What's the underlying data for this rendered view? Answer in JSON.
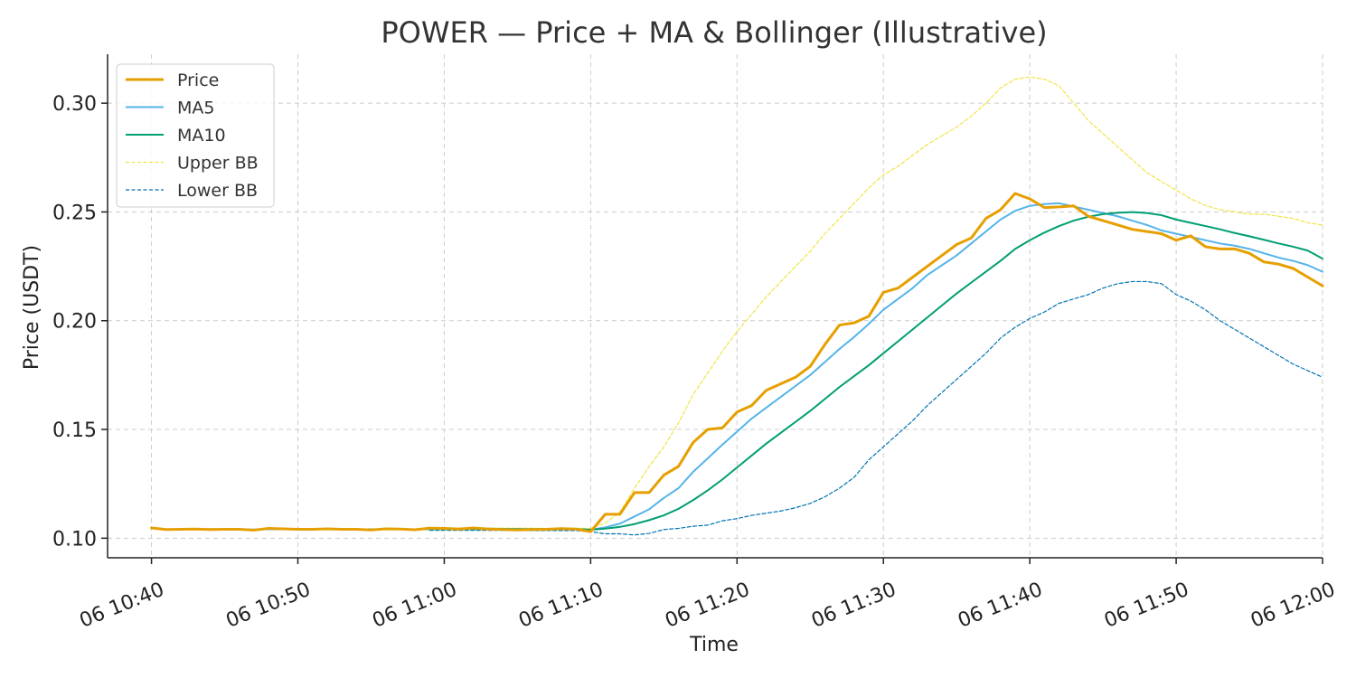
{
  "chart_data": {
    "type": "line",
    "title": "POWER — Price + MA & Bollinger (Illustrative)",
    "xlabel": "Time",
    "ylabel": "Price (USDT)",
    "x_type": "time",
    "x_start": "06 10:40",
    "x_end": "06 11:59",
    "x_step_minutes": 1,
    "xlim": [
      "06 10:37",
      "06 12:00"
    ],
    "ylim": [
      0.091,
      0.3225
    ],
    "x_ticks": [
      "06 10:40",
      "06 10:50",
      "06 11:00",
      "06 11:10",
      "06 11:20",
      "06 11:30",
      "06 11:40",
      "06 11:50",
      "06 12:00"
    ],
    "x_tick_minutes": [
      0,
      10,
      20,
      30,
      40,
      50,
      60,
      70,
      80
    ],
    "y_ticks": [
      0.1,
      0.15,
      0.2,
      0.25,
      0.3
    ],
    "y_tick_labels": [
      "0.10",
      "0.15",
      "0.20",
      "0.25",
      "0.30"
    ],
    "grid": true,
    "legend_position": "top-left",
    "series": [
      {
        "name": "Price",
        "color": "#e69f00",
        "style": "solid",
        "width": 3,
        "values": [
          0.1047,
          0.104,
          0.1041,
          0.1042,
          0.104,
          0.1041,
          0.1041,
          0.1037,
          0.1045,
          0.1043,
          0.1041,
          0.1041,
          0.1043,
          0.1041,
          0.1041,
          0.1038,
          0.1043,
          0.1042,
          0.1039,
          0.1046,
          0.1045,
          0.1042,
          0.1047,
          0.1042,
          0.104,
          0.1038,
          0.104,
          0.1041,
          0.1044,
          0.1042,
          0.103,
          0.111,
          0.111,
          0.121,
          0.121,
          0.129,
          0.133,
          0.144,
          0.15,
          0.1507,
          0.158,
          0.161,
          0.168,
          0.171,
          0.174,
          0.179,
          0.189,
          0.198,
          0.199,
          0.202,
          0.213,
          0.215,
          0.22,
          0.225,
          0.23,
          0.235,
          0.238,
          0.247,
          0.251,
          0.2585,
          0.256,
          0.252,
          0.2523,
          0.2528,
          0.248,
          0.246,
          0.244,
          0.242,
          0.241,
          0.24,
          0.237,
          0.239,
          0.234,
          0.233,
          0.233,
          0.231,
          0.227,
          0.226,
          0.224,
          0.22,
          0.216
        ]
      },
      {
        "name": "MA5",
        "color": "#56b4e9",
        "style": "solid",
        "width": 2,
        "values": [
          null,
          null,
          null,
          null,
          0.1042,
          0.1041,
          0.1041,
          0.104,
          0.1041,
          0.1041,
          0.1041,
          0.1041,
          0.1041,
          0.1041,
          0.1041,
          0.1041,
          0.1041,
          0.1041,
          0.1041,
          0.1042,
          0.1043,
          0.1043,
          0.1044,
          0.1044,
          0.1043,
          0.1042,
          0.1041,
          0.104,
          0.1041,
          0.1041,
          0.1039,
          0.105,
          0.1067,
          0.11,
          0.1133,
          0.1185,
          0.123,
          0.1305,
          0.1367,
          0.143,
          0.149,
          0.155,
          0.16,
          0.165,
          0.17,
          0.175,
          0.181,
          0.187,
          0.1925,
          0.1985,
          0.205,
          0.21,
          0.215,
          0.221,
          0.2255,
          0.23,
          0.2355,
          0.241,
          0.2465,
          0.2505,
          0.2528,
          0.2536,
          0.254,
          0.2525,
          0.251,
          0.2495,
          0.248,
          0.246,
          0.244,
          0.2415,
          0.24,
          0.2385,
          0.237,
          0.2355,
          0.2345,
          0.233,
          0.231,
          0.229,
          0.2275,
          0.2255,
          0.2225
        ]
      },
      {
        "name": "MA10",
        "color": "#009e73",
        "style": "solid",
        "width": 2,
        "values": [
          null,
          null,
          null,
          null,
          null,
          null,
          null,
          null,
          null,
          0.1042,
          0.1041,
          0.1041,
          0.1041,
          0.1041,
          0.1041,
          0.1041,
          0.1041,
          0.1041,
          0.1041,
          0.1042,
          0.1042,
          0.1042,
          0.1042,
          0.1042,
          0.1042,
          0.1042,
          0.1042,
          0.1042,
          0.1042,
          0.1042,
          0.1039,
          0.1044,
          0.1052,
          0.1065,
          0.1083,
          0.1105,
          0.1135,
          0.1175,
          0.122,
          0.127,
          0.1325,
          0.138,
          0.1435,
          0.1485,
          0.1535,
          0.1585,
          0.164,
          0.1695,
          0.1745,
          0.1795,
          0.185,
          0.1905,
          0.196,
          0.2015,
          0.207,
          0.2125,
          0.2175,
          0.2225,
          0.2275,
          0.233,
          0.237,
          0.2405,
          0.2435,
          0.246,
          0.2478,
          0.249,
          0.2496,
          0.2499,
          0.2495,
          0.2485,
          0.2465,
          0.245,
          0.2435,
          0.242,
          0.2403,
          0.2388,
          0.2372,
          0.2355,
          0.234,
          0.2322,
          0.2285
        ]
      },
      {
        "name": "Upper BB",
        "color": "#f0e442",
        "style": "dashed",
        "width": 1.2,
        "values": [
          null,
          null,
          null,
          null,
          null,
          null,
          null,
          null,
          null,
          null,
          null,
          null,
          null,
          null,
          null,
          null,
          null,
          null,
          null,
          0.1048,
          0.1048,
          0.1047,
          0.1048,
          0.1047,
          0.1046,
          0.1046,
          0.1046,
          0.1045,
          0.1046,
          0.1046,
          0.1045,
          0.107,
          0.112,
          0.123,
          0.133,
          0.142,
          0.153,
          0.166,
          0.176,
          0.186,
          0.195,
          0.203,
          0.211,
          0.218,
          0.225,
          0.232,
          0.24,
          0.247,
          0.254,
          0.261,
          0.267,
          0.271,
          0.276,
          0.281,
          0.285,
          0.289,
          0.294,
          0.3,
          0.307,
          0.311,
          0.312,
          0.311,
          0.308,
          0.3,
          0.292,
          0.286,
          0.28,
          0.274,
          0.268,
          0.264,
          0.26,
          0.256,
          0.253,
          0.251,
          0.25,
          0.249,
          0.249,
          0.248,
          0.247,
          0.245,
          0.244
        ]
      },
      {
        "name": "Lower BB",
        "color": "#0072b2",
        "style": "dashed",
        "width": 1.2,
        "values": [
          null,
          null,
          null,
          null,
          null,
          null,
          null,
          null,
          null,
          null,
          null,
          null,
          null,
          null,
          null,
          null,
          null,
          null,
          null,
          0.1036,
          0.1036,
          0.1036,
          0.1036,
          0.1036,
          0.1036,
          0.1035,
          0.1035,
          0.1035,
          0.1035,
          0.1035,
          0.103,
          0.102,
          0.102,
          0.1015,
          0.1022,
          0.104,
          0.1045,
          0.1055,
          0.106,
          0.108,
          0.109,
          0.1105,
          0.1115,
          0.1125,
          0.114,
          0.116,
          0.119,
          0.123,
          0.128,
          0.136,
          0.142,
          0.148,
          0.154,
          0.161,
          0.167,
          0.173,
          0.179,
          0.185,
          0.192,
          0.197,
          0.201,
          0.204,
          0.208,
          0.21,
          0.212,
          0.215,
          0.217,
          0.218,
          0.218,
          0.217,
          0.212,
          0.209,
          0.205,
          0.2,
          0.196,
          0.192,
          0.188,
          0.184,
          0.18,
          0.177,
          0.174
        ]
      }
    ]
  }
}
